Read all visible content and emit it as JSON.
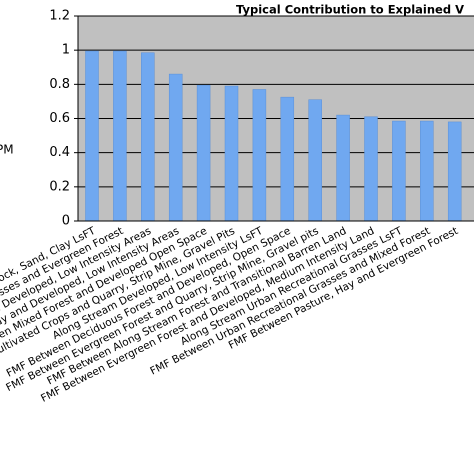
{
  "chart_data": {
    "type": "bar",
    "title": "Typical Contribution to Explained V",
    "y_label": "PM",
    "categories": [
      "ock, Sand, Clay LsFT",
      "sses and Evergreen Forest",
      "and Developed, Low Intensity Areas",
      "Hay and Developed, Low Intensity Areas",
      "Between Mixed Forest and Developed Open Space",
      "Cultivated Crops and Quarry, Strip Mine, Gravel Pits",
      "Along Stream Developed, Low Intensity LsFT",
      "FMF Between Deciduous Forest and Developed, Open Space",
      "FMF Between Evergreen Forest and Quarry, Strip Mine, Gravel pits",
      "FMF Between Along Stream Forest and Transitional Barren Land",
      "FMF Between Evergreen Forest and Developed, Medium Intensity Land",
      "Along Stream Urban Recreational Grasses LsFT",
      "FMF Between Urban Recreational Grasses and Mixed Forest",
      "FMF Between Pasture, Hay and Evergreen Forest"
    ],
    "values": [
      0.995,
      0.995,
      0.985,
      0.86,
      0.795,
      0.79,
      0.77,
      0.725,
      0.71,
      0.62,
      0.61,
      0.585,
      0.585,
      0.58
    ],
    "color": "#70a8f0",
    "ylim": [
      0,
      1.2
    ],
    "yticks": [
      0,
      0.2,
      0.4,
      0.6,
      0.8,
      1,
      1.2
    ],
    "grid": true
  }
}
